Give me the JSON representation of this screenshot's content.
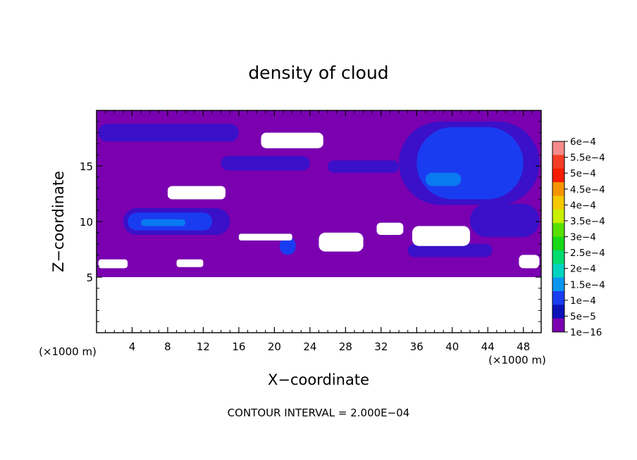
{
  "chart_data": {
    "type": "heatmap",
    "title": "density of cloud",
    "xlabel": "X−coordinate",
    "ylabel": "Z−coordinate",
    "x_unit_left": "(×1000 m)",
    "x_unit_right": "(×1000 m)",
    "xlim": [
      0,
      50
    ],
    "ylim": [
      0,
      20
    ],
    "x_ticks": [
      4,
      8,
      12,
      16,
      20,
      24,
      28,
      32,
      36,
      40,
      44,
      48
    ],
    "y_ticks": [
      5,
      10,
      15
    ],
    "footer": "CONTOUR INTERVAL = 2.000E−04",
    "colorbar": {
      "labels": [
        "6e−4",
        "5.5e−4",
        "5e−4",
        "4.5e−4",
        "4e−4",
        "3.5e−4",
        "3e−4",
        "2.5e−4",
        "2e−4",
        "1.5e−4",
        "1e−4",
        "5e−5",
        "1e−16"
      ],
      "colors": [
        "#f58a8a",
        "#f53c24",
        "#f51c00",
        "#f59400",
        "#f5c800",
        "#c8f000",
        "#58e000",
        "#18d818",
        "#00dc6e",
        "#00d4c0",
        "#0a96f0",
        "#1a3cf0",
        "#0a12b8",
        "#7a00b0"
      ]
    },
    "field": {
      "background_color": "#7a00b0",
      "data_bottom_z": 5,
      "bands": [
        {
          "level": "5e-5",
          "color": "#3a10c8",
          "x1": 0.2,
          "x2": 16,
          "z1": 17.2,
          "z2": 18.8
        },
        {
          "level": "5e-5",
          "color": "#3a10c8",
          "x1": 14,
          "x2": 24,
          "z1": 14.6,
          "z2": 15.9
        },
        {
          "level": "5e-5",
          "color": "#3a10c8",
          "x1": 26,
          "x2": 34,
          "z1": 14.4,
          "z2": 15.5
        },
        {
          "level": "5e-5",
          "color": "#3a10c8",
          "x1": 3,
          "x2": 15,
          "z1": 8.8,
          "z2": 11.2
        },
        {
          "level": "5e-5",
          "color": "#3a10c8",
          "x1": 34,
          "x2": 49.8,
          "z1": 11.5,
          "z2": 19
        },
        {
          "level": "5e-5",
          "color": "#3a10c8",
          "x1": 42,
          "x2": 49.8,
          "z1": 8.6,
          "z2": 11.6
        },
        {
          "level": "5e-5",
          "color": "#3a10c8",
          "x1": 35,
          "x2": 44.5,
          "z1": 6.8,
          "z2": 8
        },
        {
          "level": "1e-4",
          "color": "#1a3cf0",
          "x1": 36,
          "x2": 48,
          "z1": 12,
          "z2": 18.5
        },
        {
          "level": "1e-4",
          "color": "#1a3cf0",
          "x1": 3.5,
          "x2": 13,
          "z1": 9.2,
          "z2": 10.8
        },
        {
          "level": "1e-4",
          "color": "#1a3cf0",
          "x1": 20.6,
          "x2": 22.4,
          "z1": 7,
          "z2": 8.6
        },
        {
          "level": "1.5e-4",
          "color": "#0a7af0",
          "x1": 37,
          "x2": 41,
          "z1": 13.2,
          "z2": 14.4
        },
        {
          "level": "1.5e-4",
          "color": "#0a7af0",
          "x1": 5,
          "x2": 10,
          "z1": 9.6,
          "z2": 10.2
        }
      ],
      "white_regions": [
        {
          "x1": 18.5,
          "x2": 25.5,
          "z1": 16.6,
          "z2": 18
        },
        {
          "x1": 8,
          "x2": 14.5,
          "z1": 12,
          "z2": 13.2
        },
        {
          "x1": 16,
          "x2": 22,
          "z1": 8.3,
          "z2": 8.9
        },
        {
          "x1": 25,
          "x2": 30,
          "z1": 7.3,
          "z2": 9
        },
        {
          "x1": 31.5,
          "x2": 34.5,
          "z1": 8.8,
          "z2": 9.9
        },
        {
          "x1": 35.5,
          "x2": 42,
          "z1": 7.8,
          "z2": 9.6
        },
        {
          "x1": 0.2,
          "x2": 3.5,
          "z1": 5.8,
          "z2": 6.6
        },
        {
          "x1": 9,
          "x2": 12,
          "z1": 5.9,
          "z2": 6.6
        },
        {
          "x1": 47.5,
          "x2": 49.8,
          "z1": 5.8,
          "z2": 7
        }
      ]
    }
  }
}
